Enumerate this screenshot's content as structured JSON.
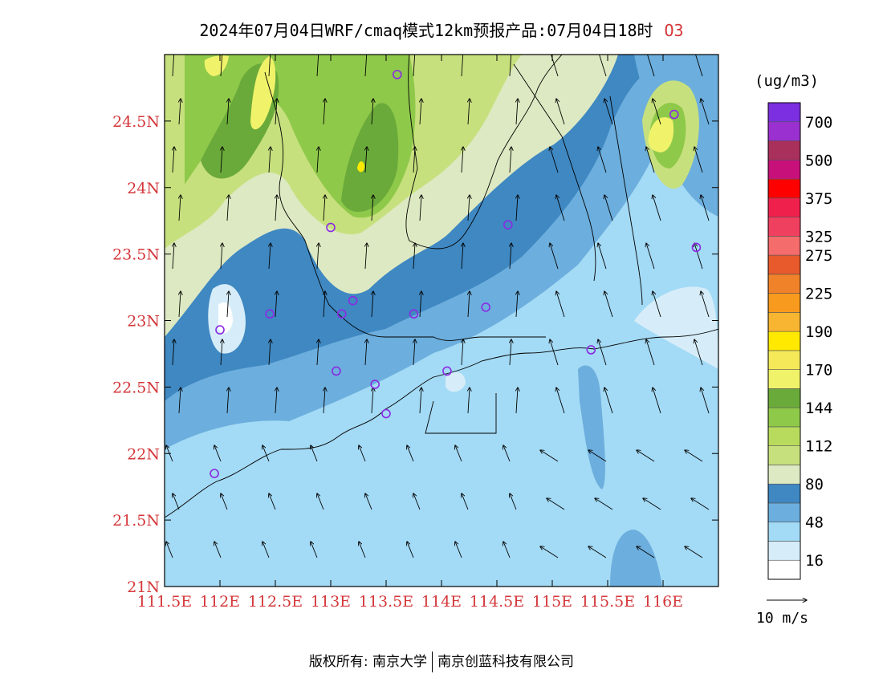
{
  "title": {
    "main": "2024年07月04日WRF/cmaq模式12km预报产品:07月04日18时",
    "species": "O3"
  },
  "colorbar": {
    "unit": "(ug/m3)",
    "colors": [
      "#ffffff",
      "#d6edf9",
      "#a3daf5",
      "#6caedd",
      "#3f88c2",
      "#dde9c2",
      "#c7e07e",
      "#b8db5e",
      "#8fc94a",
      "#6aaa3a",
      "#f0f36a",
      "#f5e95a",
      "#ffe900",
      "#f7b531",
      "#f89a1d",
      "#f0832a",
      "#e85a2c",
      "#f46c6c",
      "#f04060",
      "#f0204c",
      "#ff0000",
      "#c8107a",
      "#a8305a",
      "#9a30d0",
      "#7b2fe0"
    ],
    "labels": [
      {
        "after": 0,
        "text": "16"
      },
      {
        "after": 2,
        "text": "48"
      },
      {
        "after": 4,
        "text": "80"
      },
      {
        "after": 6,
        "text": "112"
      },
      {
        "after": 8,
        "text": "144"
      },
      {
        "after": 10,
        "text": "170"
      },
      {
        "after": 12,
        "text": "190"
      },
      {
        "after": 14,
        "text": "225"
      },
      {
        "after": 16,
        "text": "275"
      },
      {
        "after": 17,
        "text": "325"
      },
      {
        "after": 19,
        "text": "375"
      },
      {
        "after": 21,
        "text": "500"
      },
      {
        "after": 23,
        "text": "700"
      }
    ]
  },
  "axes": {
    "lon_ticks": [
      "111.5E",
      "112E",
      "112.5E",
      "113E",
      "113.5E",
      "114E",
      "114.5E",
      "115E",
      "115.5E",
      "116E"
    ],
    "lat_ticks": [
      "21N",
      "21.5N",
      "22N",
      "22.5N",
      "23N",
      "23.5N",
      "24N",
      "24.5N"
    ]
  },
  "wind_reference": "10 m/s",
  "footer": {
    "left": "版权所有: 南京大学",
    "right": "南京创蓝科技有限公司"
  },
  "map": {
    "lon_range": [
      111.5,
      116.5
    ],
    "lat_range": [
      21.0,
      25.0
    ],
    "stations": [
      [
        113.6,
        24.85
      ],
      [
        116.1,
        24.55
      ],
      [
        113.0,
        23.7
      ],
      [
        114.6,
        23.72
      ],
      [
        116.3,
        23.55
      ],
      [
        113.2,
        23.15
      ],
      [
        112.45,
        23.05
      ],
      [
        113.1,
        23.05
      ],
      [
        113.75,
        23.05
      ],
      [
        114.4,
        23.1
      ],
      [
        112.0,
        22.93
      ],
      [
        113.05,
        22.62
      ],
      [
        113.4,
        22.52
      ],
      [
        114.05,
        22.62
      ],
      [
        115.35,
        22.78
      ],
      [
        113.5,
        22.3
      ],
      [
        111.95,
        21.85
      ]
    ]
  }
}
